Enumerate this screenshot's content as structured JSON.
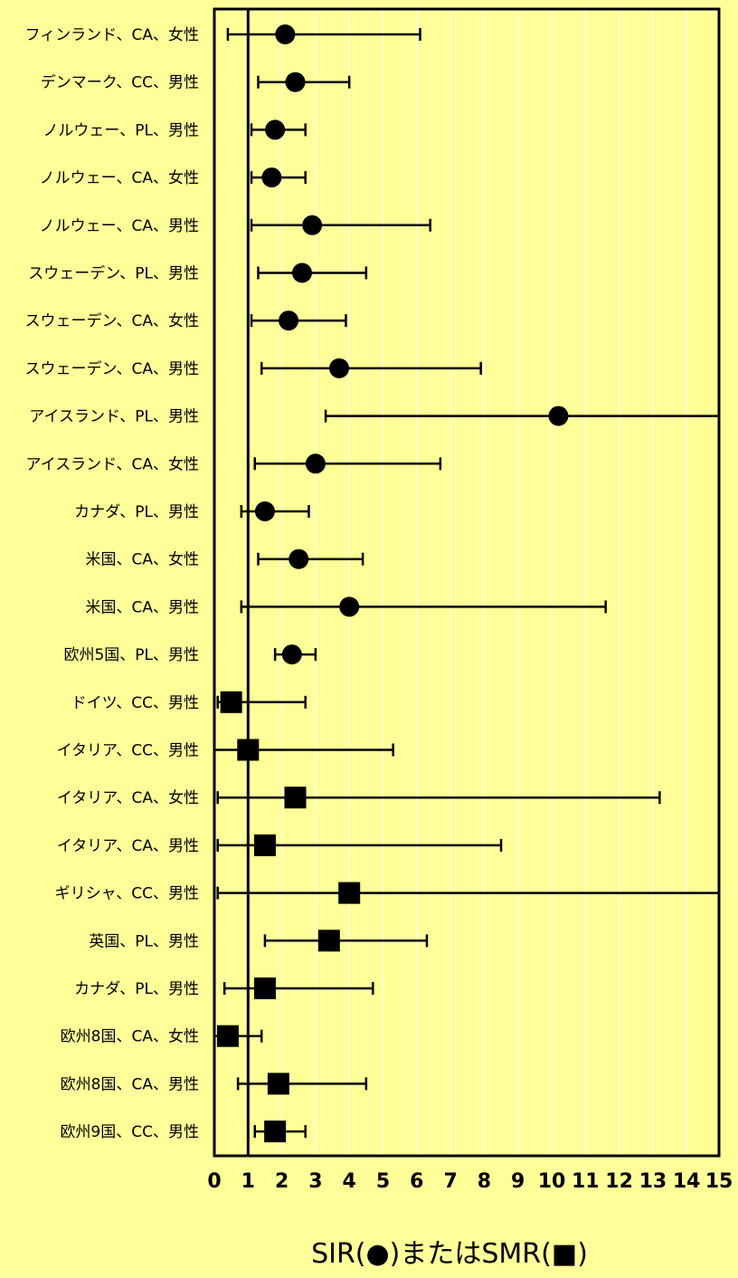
{
  "chart_data": {
    "type": "scatter",
    "subtype": "forest-plot",
    "xlabel": "SIR(●)またはSMR(■)",
    "xlim": [
      0,
      15
    ],
    "x_ticks": [
      "0",
      "1",
      "2",
      "3",
      "4",
      "5",
      "6",
      "7",
      "8",
      "9",
      "10",
      "11",
      "12",
      "13",
      "14",
      "15"
    ],
    "reference_line": 1,
    "grid": "vertical",
    "rows": [
      {
        "label": "フィンランド、CA、女性",
        "marker": "circle",
        "estimate": 2.1,
        "lower": 0.4,
        "upper": 6.1
      },
      {
        "label": "デンマーク、CC、男性",
        "marker": "circle",
        "estimate": 2.4,
        "lower": 1.3,
        "upper": 4.0
      },
      {
        "label": "ノルウェー、PL、男性",
        "marker": "circle",
        "estimate": 1.8,
        "lower": 1.1,
        "upper": 2.7
      },
      {
        "label": "ノルウェー、CA、女性",
        "marker": "circle",
        "estimate": 1.7,
        "lower": 1.1,
        "upper": 2.7
      },
      {
        "label": "ノルウェー、CA、男性",
        "marker": "circle",
        "estimate": 2.9,
        "lower": 1.1,
        "upper": 6.4
      },
      {
        "label": "スウェーデン、PL、男性",
        "marker": "circle",
        "estimate": 2.6,
        "lower": 1.3,
        "upper": 4.5
      },
      {
        "label": "スウェーデン、CA、女性",
        "marker": "circle",
        "estimate": 2.2,
        "lower": 1.1,
        "upper": 3.9
      },
      {
        "label": "スウェーデン、CA、男性",
        "marker": "circle",
        "estimate": 3.7,
        "lower": 1.4,
        "upper": 7.9
      },
      {
        "label": "アイスランド、PL、男性",
        "marker": "circle",
        "estimate": 10.2,
        "lower": 3.3,
        "upper": 15.3
      },
      {
        "label": "アイスランド、CA、女性",
        "marker": "circle",
        "estimate": 3.0,
        "lower": 1.2,
        "upper": 6.7
      },
      {
        "label": "カナダ、PL、男性",
        "marker": "circle",
        "estimate": 1.5,
        "lower": 0.8,
        "upper": 2.8
      },
      {
        "label": "米国、CA、女性",
        "marker": "circle",
        "estimate": 2.5,
        "lower": 1.3,
        "upper": 4.4
      },
      {
        "label": "米国、CA、男性",
        "marker": "circle",
        "estimate": 4.0,
        "lower": 0.8,
        "upper": 11.6
      },
      {
        "label": "欧州5国、PL、男性",
        "marker": "circle",
        "estimate": 2.3,
        "lower": 1.8,
        "upper": 3.0
      },
      {
        "label": "ドイツ、CC、男性",
        "marker": "square",
        "estimate": 0.5,
        "lower": 0.1,
        "upper": 2.7
      },
      {
        "label": "イタリア、CC、男性",
        "marker": "square",
        "estimate": 1.0,
        "lower": 0.0,
        "upper": 5.3
      },
      {
        "label": "イタリア、CA、女性",
        "marker": "square",
        "estimate": 2.4,
        "lower": 0.1,
        "upper": 13.2
      },
      {
        "label": "イタリア、CA、男性",
        "marker": "square",
        "estimate": 1.5,
        "lower": 0.1,
        "upper": 8.5
      },
      {
        "label": "ギリシャ、CC、男性",
        "marker": "square",
        "estimate": 4.0,
        "lower": 0.1,
        "upper": 15.3
      },
      {
        "label": "英国、PL、男性",
        "marker": "square",
        "estimate": 3.4,
        "lower": 1.5,
        "upper": 6.3
      },
      {
        "label": "カナダ、PL、男性",
        "marker": "square",
        "estimate": 1.5,
        "lower": 0.3,
        "upper": 4.7
      },
      {
        "label": "欧州8国、CA、女性",
        "marker": "square",
        "estimate": 0.4,
        "lower": 0.0,
        "upper": 1.4
      },
      {
        "label": "欧州8国、CA、男性",
        "marker": "square",
        "estimate": 1.9,
        "lower": 0.7,
        "upper": 4.5
      },
      {
        "label": "欧州9国、CC、男性",
        "marker": "square",
        "estimate": 1.8,
        "lower": 1.2,
        "upper": 2.7
      }
    ],
    "colors": {
      "background": "#ffff99",
      "marks": "#000000",
      "grid": "#ffffff"
    }
  }
}
